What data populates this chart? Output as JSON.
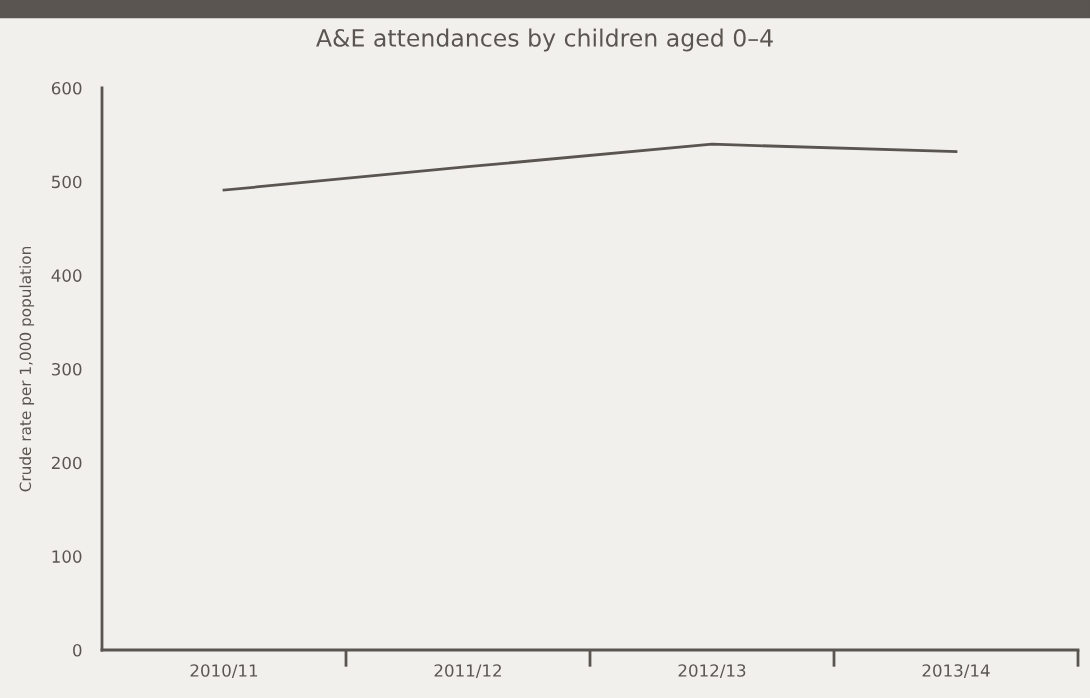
{
  "chart_data": {
    "type": "line",
    "title": "A&E attendances by children aged 0–4",
    "ylabel": "Crude rate per 1,000 population",
    "categories": [
      "2010/11",
      "2011/12",
      "2012/13",
      "2013/14"
    ],
    "series": [
      {
        "color": "#5a5550",
        "values": [
          491,
          516,
          540,
          532
        ]
      }
    ],
    "ylim": [
      0,
      600
    ],
    "yticks": [
      0,
      100,
      200,
      300,
      400,
      500,
      600
    ],
    "grid": false,
    "legend": false,
    "marker": "none",
    "line_style": "solid"
  }
}
